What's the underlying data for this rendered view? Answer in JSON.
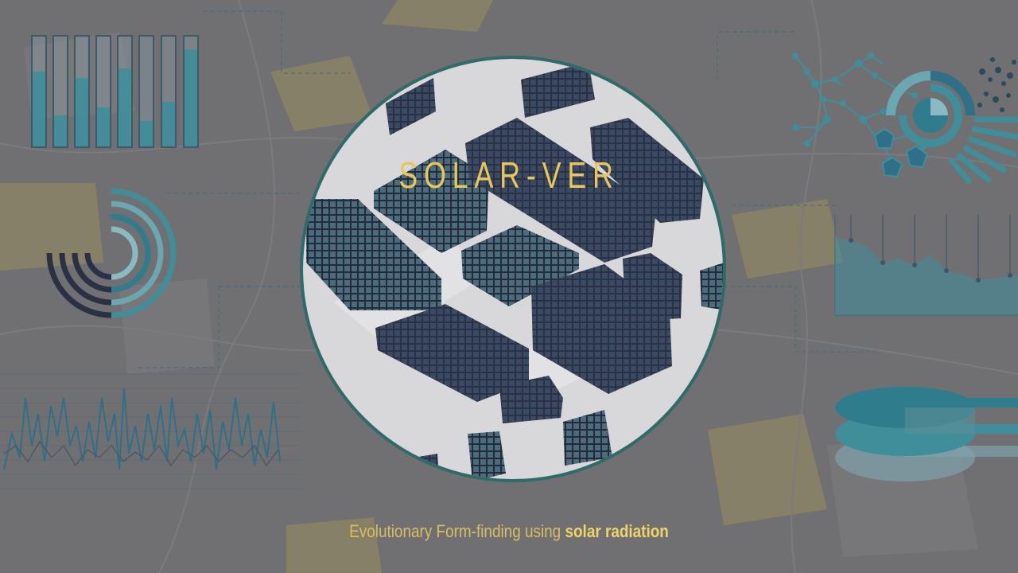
{
  "slide": {
    "title": "SOLAR-VER",
    "subtitle_main": "Evolutionary Form-finding using",
    "subtitle_emphasis": "solar radiation"
  },
  "colors": {
    "background": "#6b6b6e",
    "accent_gold": "#e9c65a",
    "teal": "#3f8e9a",
    "circle_ring": "#2f6b68"
  },
  "decorations": [
    "bar-gauge-chart",
    "radial-arc-chart",
    "line-wave-chart",
    "network-graph",
    "sunburst-chart",
    "area-chart",
    "stacked-discs-chart",
    "city-buildings-illustration"
  ]
}
